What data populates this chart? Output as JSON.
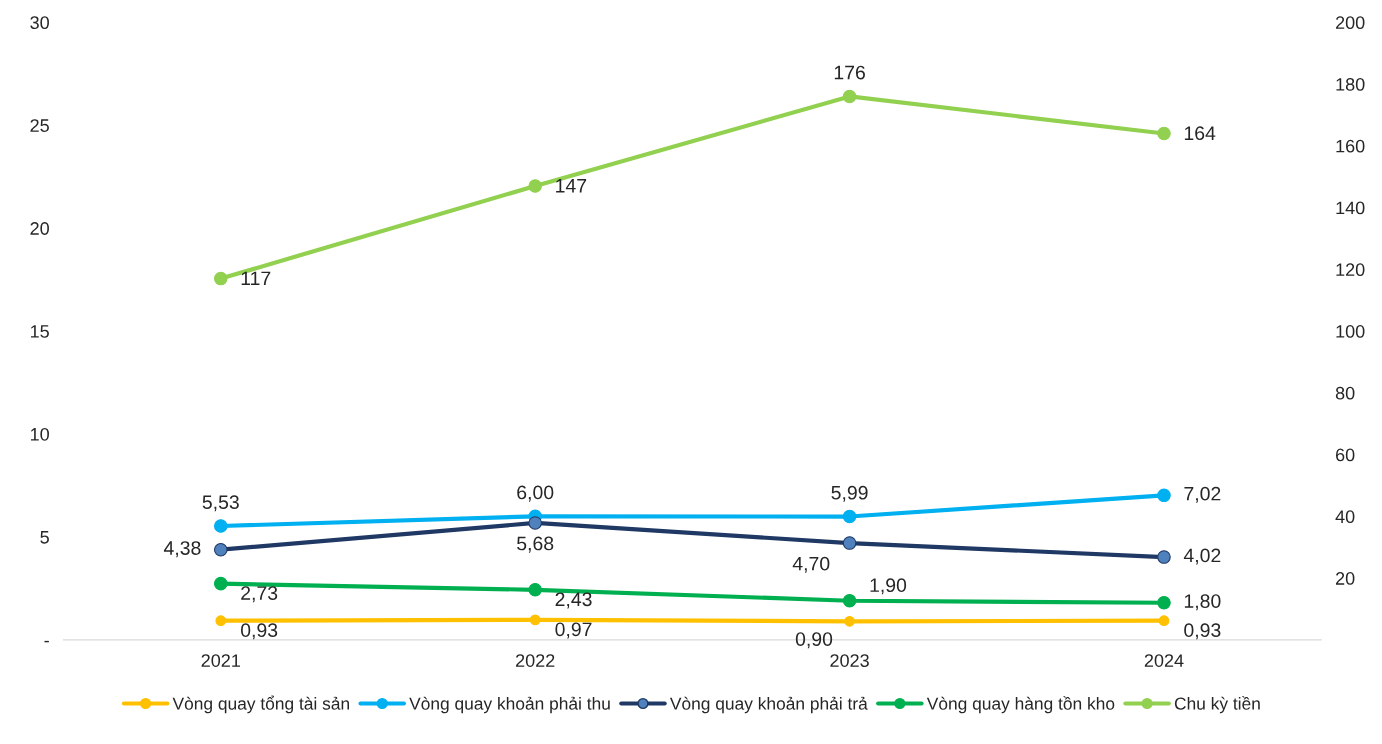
{
  "chart_data": {
    "type": "line",
    "categories": [
      "2021",
      "2022",
      "2023",
      "2024"
    ],
    "series": [
      {
        "name": "Vòng quay tổng tài sản",
        "color": "#ffc000",
        "values": [
          0.93,
          0.97,
          0.9,
          0.93
        ],
        "value_labels": [
          "0,93",
          "0,97",
          "0,90",
          "0,93"
        ]
      },
      {
        "name": "Vòng quay khoản phải thu",
        "color": "#00b0f0",
        "values": [
          5.53,
          6.0,
          5.99,
          7.02
        ],
        "value_labels": [
          "5,53",
          "6,00",
          "5,99",
          "7,02"
        ]
      },
      {
        "name": "Vòng quay khoản phải trả",
        "color": "#1f3864",
        "values": [
          4.38,
          5.68,
          4.7,
          4.02
        ],
        "value_labels": [
          "4,38",
          "5,68",
          "4,70",
          "4,02"
        ]
      },
      {
        "name": "Vòng quay hàng tồn kho",
        "color": "#00b050",
        "values": [
          2.73,
          2.43,
          1.9,
          1.8
        ],
        "value_labels": [
          "2,73",
          "2,43",
          "1,90",
          "1,80"
        ]
      },
      {
        "name": "Chu kỳ tiền",
        "color": "#92d050",
        "axis": "y2",
        "values": [
          117,
          147,
          176,
          164
        ],
        "value_labels": [
          "117",
          "147",
          "176",
          "164"
        ]
      }
    ],
    "ylim": [
      0,
      30
    ],
    "yticks": [
      {
        "value": 0,
        "label": "-"
      },
      5,
      10,
      15,
      20,
      25,
      30
    ],
    "y2lim": [
      0,
      200
    ],
    "y2ticks": [
      20,
      40,
      60,
      80,
      100,
      120,
      140,
      160,
      180,
      200
    ],
    "marker": "circle",
    "line_style": "solid",
    "grid": false,
    "legend": "bottom"
  }
}
